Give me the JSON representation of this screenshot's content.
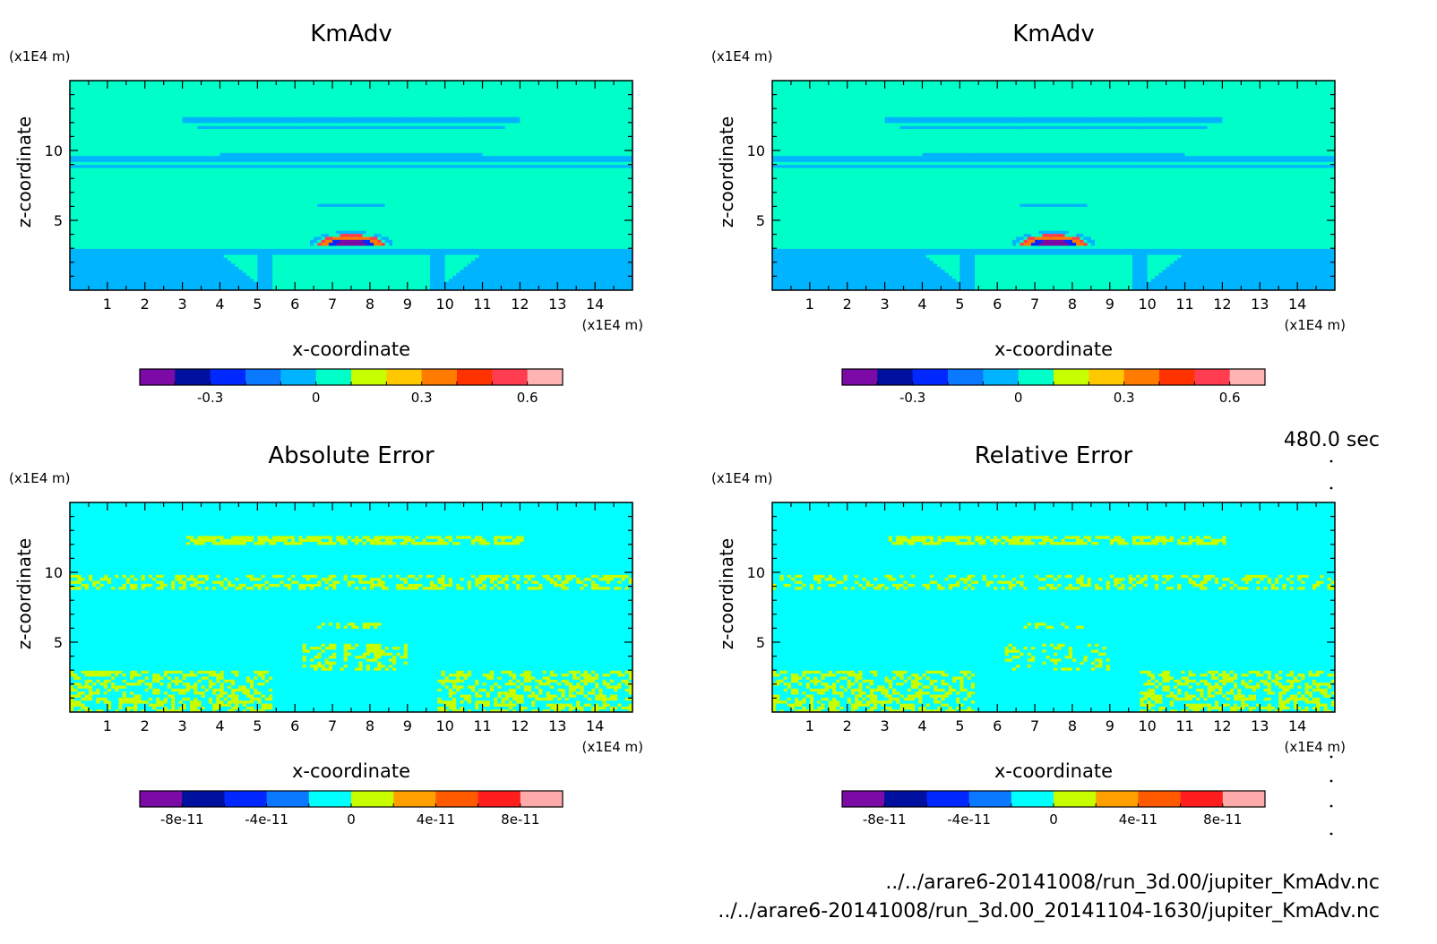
{
  "chart_data": [
    {
      "type": "heatmap",
      "title": "KmAdv",
      "xlabel": "x-coordinate",
      "ylabel": "z-coordinate",
      "x_unit": "(x1E4 m)",
      "y_unit": "(x1E4 m)",
      "xlim": [
        0,
        15
      ],
      "ylim": [
        0,
        15
      ],
      "x_ticks": [
        1,
        2,
        3,
        4,
        5,
        6,
        7,
        8,
        9,
        10,
        11,
        12,
        13,
        14
      ],
      "y_ticks": [
        5,
        10
      ],
      "field": "kmadv",
      "colorbar": {
        "min": -0.5,
        "max": 0.7,
        "tick_values": [
          -0.3,
          0,
          0.3,
          0.6
        ],
        "tick_labels": [
          "-0.3",
          "0",
          "0.3",
          "0.6"
        ],
        "colors": [
          "#7b0aa6",
          "#00109e",
          "#0028ff",
          "#0a78ff",
          "#00b4ff",
          "#00ffc8",
          "#c8ff00",
          "#ffc800",
          "#ff7c00",
          "#ff3200",
          "#ff3c50",
          "#ffb4b4"
        ]
      }
    },
    {
      "type": "heatmap",
      "title": "KmAdv",
      "xlabel": "x-coordinate",
      "ylabel": "z-coordinate",
      "x_unit": "(x1E4 m)",
      "y_unit": "(x1E4 m)",
      "xlim": [
        0,
        15
      ],
      "ylim": [
        0,
        15
      ],
      "x_ticks": [
        1,
        2,
        3,
        4,
        5,
        6,
        7,
        8,
        9,
        10,
        11,
        12,
        13,
        14
      ],
      "y_ticks": [
        5,
        10
      ],
      "field": "kmadv",
      "colorbar": {
        "min": -0.5,
        "max": 0.7,
        "tick_values": [
          -0.3,
          0,
          0.3,
          0.6
        ],
        "tick_labels": [
          "-0.3",
          "0",
          "0.3",
          "0.6"
        ],
        "colors": [
          "#7b0aa6",
          "#00109e",
          "#0028ff",
          "#0a78ff",
          "#00b4ff",
          "#00ffc8",
          "#c8ff00",
          "#ffc800",
          "#ff7c00",
          "#ff3200",
          "#ff3c50",
          "#ffb4b4"
        ]
      }
    },
    {
      "type": "heatmap",
      "title": "Absolute Error",
      "xlabel": "x-coordinate",
      "ylabel": "z-coordinate",
      "x_unit": "(x1E4 m)",
      "y_unit": "(x1E4 m)",
      "xlim": [
        0,
        15
      ],
      "ylim": [
        0,
        15
      ],
      "x_ticks": [
        1,
        2,
        3,
        4,
        5,
        6,
        7,
        8,
        9,
        10,
        11,
        12,
        13,
        14
      ],
      "y_ticks": [
        5,
        10
      ],
      "field": "abs_error",
      "colorbar": {
        "min": -1e-10,
        "max": 1e-10,
        "tick_values": [
          -8e-11,
          -4e-11,
          0,
          4e-11,
          8e-11
        ],
        "tick_labels": [
          "-8e-11",
          "-4e-11",
          "0",
          "4e-11",
          "8e-11"
        ],
        "colors": [
          "#7b0aa6",
          "#00109e",
          "#0028ff",
          "#0a78ff",
          "#00ffff",
          "#c8ff00",
          "#ffa000",
          "#ff5a00",
          "#ff1e1e",
          "#ffaaaa"
        ]
      }
    },
    {
      "type": "heatmap",
      "title": "Relative Error",
      "xlabel": "x-coordinate",
      "ylabel": "z-coordinate",
      "x_unit": "(x1E4 m)",
      "y_unit": "(x1E4 m)",
      "xlim": [
        0,
        15
      ],
      "ylim": [
        0,
        15
      ],
      "x_ticks": [
        1,
        2,
        3,
        4,
        5,
        6,
        7,
        8,
        9,
        10,
        11,
        12,
        13,
        14
      ],
      "y_ticks": [
        5,
        10
      ],
      "field": "rel_error",
      "colorbar": {
        "min": -1e-10,
        "max": 1e-10,
        "tick_values": [
          -8e-11,
          -4e-11,
          0,
          4e-11,
          8e-11
        ],
        "tick_labels": [
          "-8e-11",
          "-4e-11",
          "0",
          "4e-11",
          "8e-11"
        ],
        "colors": [
          "#7b0aa6",
          "#00109e",
          "#0028ff",
          "#0a78ff",
          "#00ffff",
          "#c8ff00",
          "#ffa000",
          "#ff5a00",
          "#ff1e1e",
          "#ffaaaa"
        ]
      }
    }
  ],
  "time_label": "480.0 sec",
  "files": [
    "../../arare6-20141008/run_3d.00/jupiter_KmAdv.nc",
    "../../arare6-20141008/run_3d.00_20141104-1630/jupiter_KmAdv.nc"
  ]
}
